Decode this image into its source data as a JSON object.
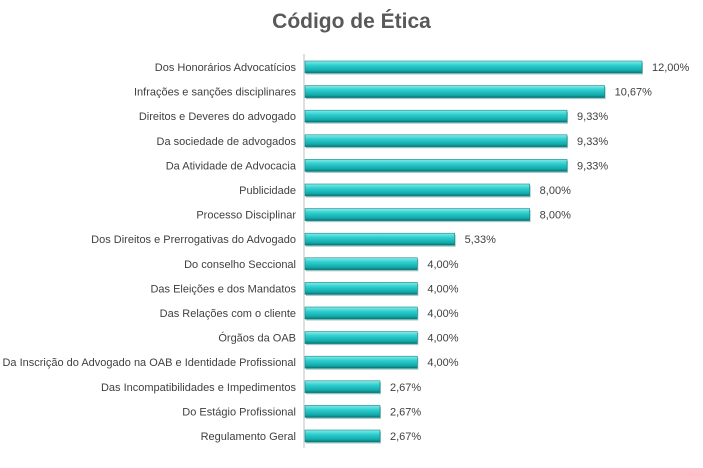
{
  "chart_data": {
    "type": "bar",
    "orientation": "horizontal",
    "title": "Código de Ética",
    "categories": [
      "Dos Honorários Advocatícios",
      "Infrações e sanções disciplinares",
      "Direitos e Deveres do advogado",
      "Da sociedade de advogados",
      "Da Atividade de Advocacia",
      "Publicidade",
      "Processo Disciplinar",
      "Dos Direitos e Prerrogativas do Advogado",
      "Do conselho Seccional",
      "Das Eleições e dos Mandatos",
      "Das Relações com o cliente",
      "Órgãos da OAB",
      "Da Inscrição do Advogado na OAB e Identidade Profissional",
      "Das Incompatibilidades e Impedimentos",
      "Do Estágio Profissional",
      "Regulamento Geral"
    ],
    "values": [
      12.0,
      10.67,
      9.33,
      9.33,
      9.33,
      8.0,
      8.0,
      5.33,
      4.0,
      4.0,
      4.0,
      4.0,
      4.0,
      2.67,
      2.67,
      2.67
    ],
    "data_labels": [
      "12,00%",
      "10,67%",
      "9,33%",
      "9,33%",
      "9,33%",
      "8,00%",
      "8,00%",
      "5,33%",
      "4,00%",
      "4,00%",
      "4,00%",
      "4,00%",
      "4,00%",
      "2,67%",
      "2,67%",
      "2,67%"
    ],
    "xlim": [
      0,
      12
    ],
    "grid": false,
    "legend": "none",
    "bar_color": "#1fc4c4"
  }
}
